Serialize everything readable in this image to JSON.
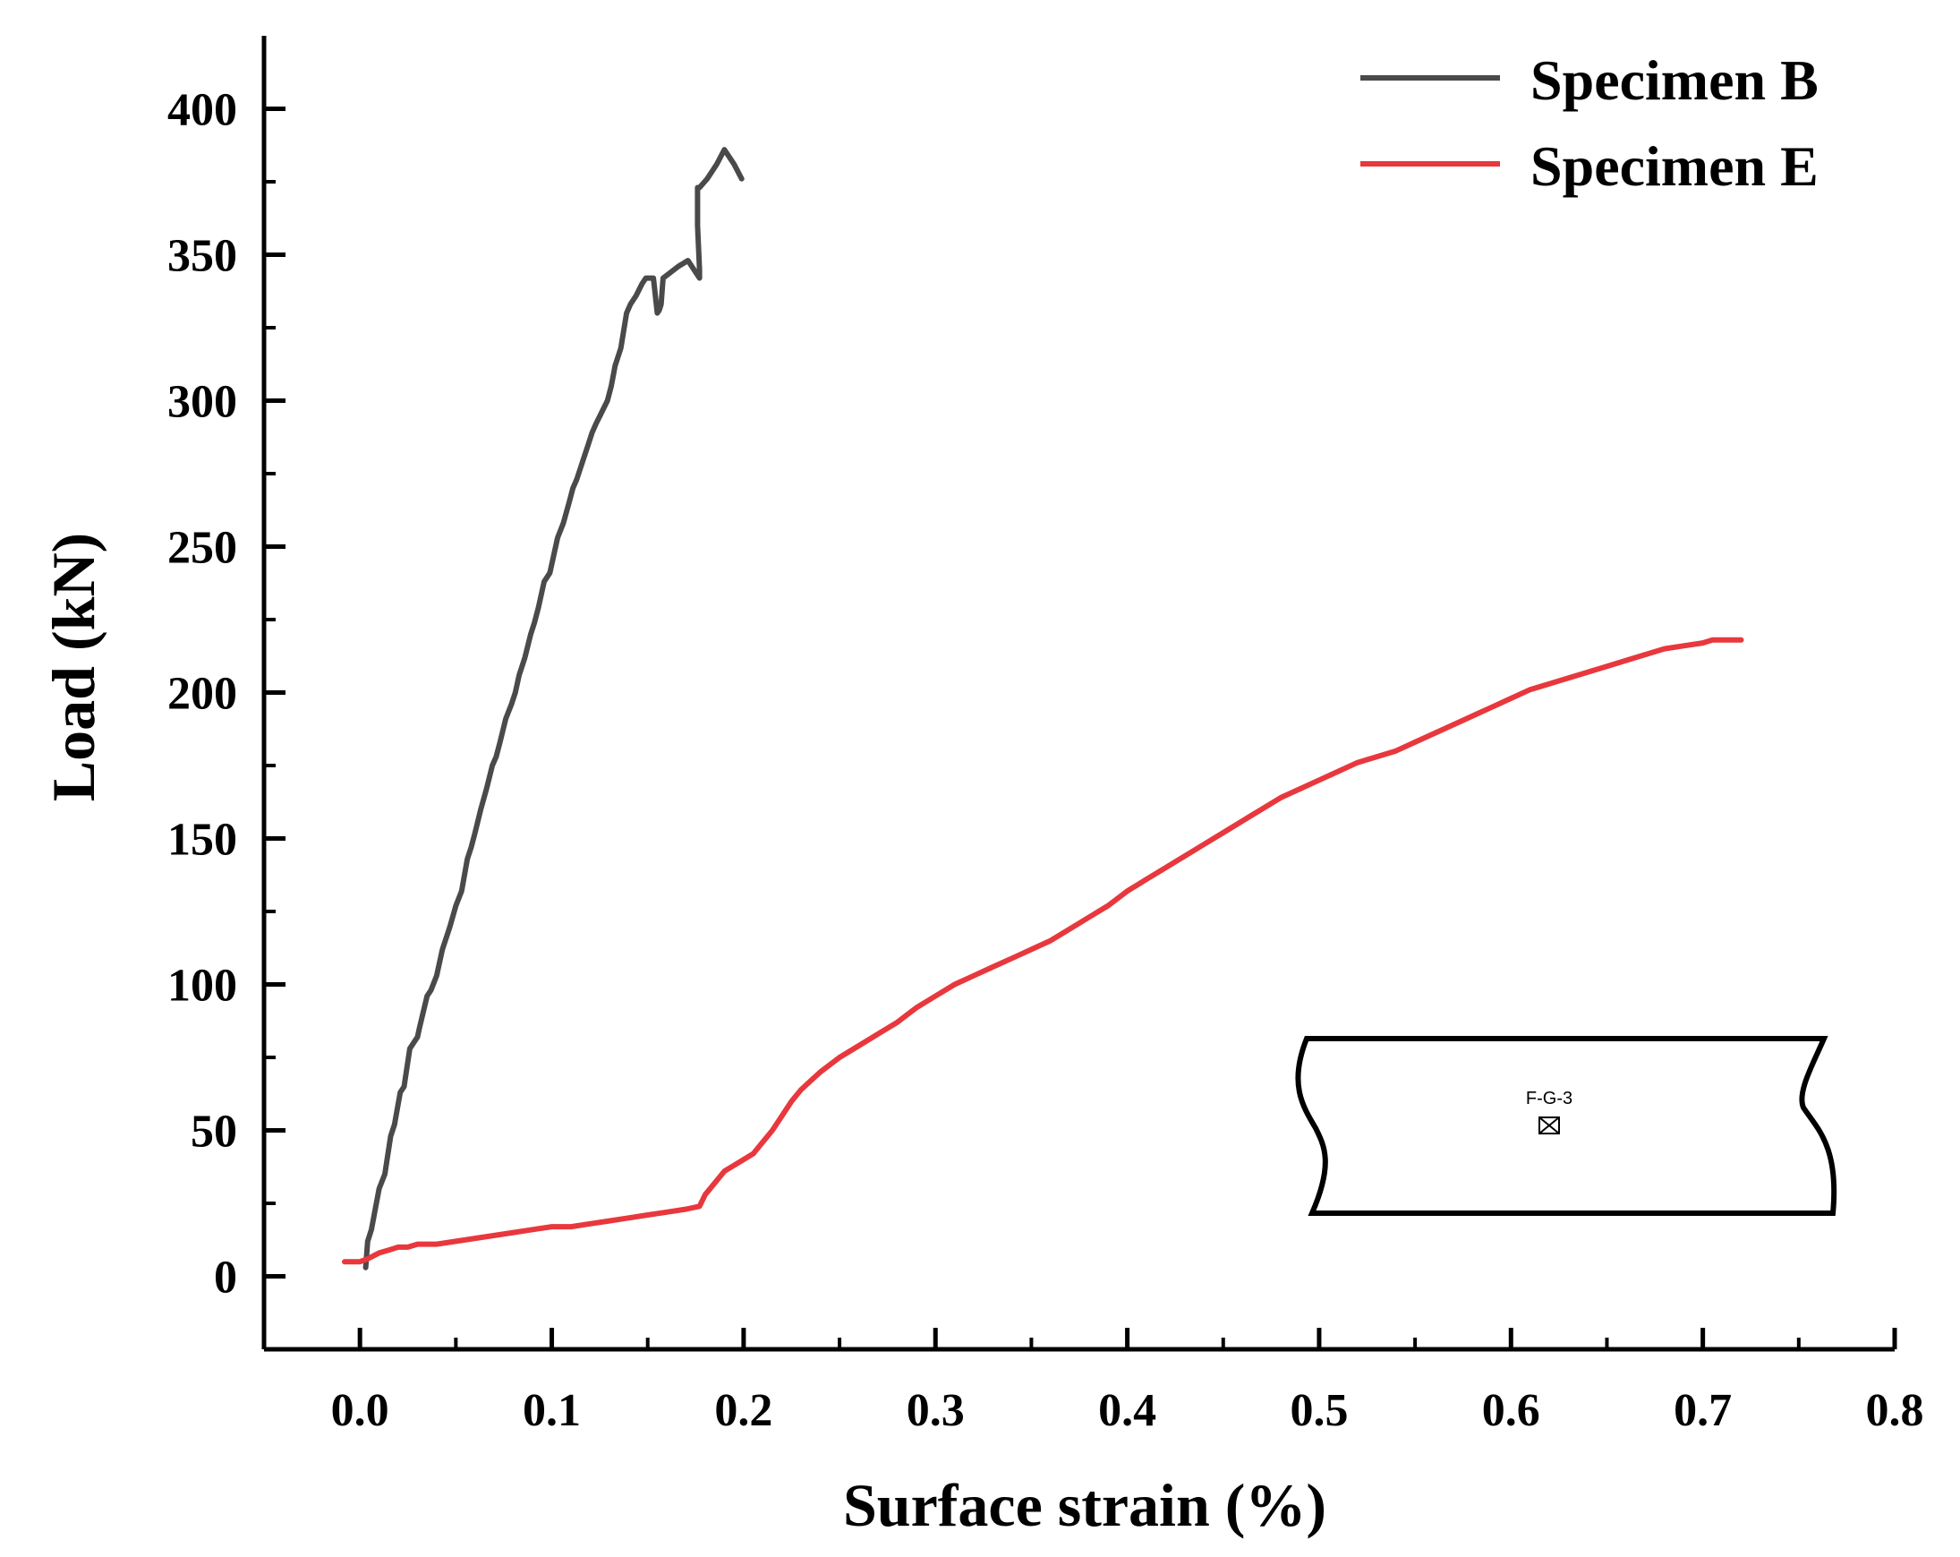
{
  "chart_data": {
    "type": "line",
    "xlabel": "Surface strain (%)",
    "ylabel": "Load (kN)",
    "xlim": [
      -0.05,
      0.8
    ],
    "ylim": [
      -25,
      425
    ],
    "xticks": [
      0.0,
      0.1,
      0.2,
      0.3,
      0.4,
      0.5,
      0.6,
      0.7,
      0.8
    ],
    "xtick_labels": [
      "0.0",
      "0.1",
      "0.2",
      "0.3",
      "0.4",
      "0.5",
      "0.6",
      "0.7",
      "0.8"
    ],
    "yticks": [
      0,
      50,
      100,
      150,
      200,
      250,
      300,
      350,
      400
    ],
    "ytick_labels": [
      "0",
      "50",
      "100",
      "150",
      "200",
      "250",
      "300",
      "350",
      "400"
    ],
    "legend_position": "top-right",
    "series": [
      {
        "name": "Specimen B",
        "color": "#4a4a4a",
        "x": [
          0.003,
          0.004,
          0.006,
          0.01,
          0.013,
          0.016,
          0.018,
          0.021,
          0.023,
          0.026,
          0.028,
          0.03,
          0.031,
          0.035,
          0.037,
          0.04,
          0.043,
          0.046,
          0.047,
          0.05,
          0.053,
          0.056,
          0.058,
          0.06,
          0.063,
          0.066,
          0.069,
          0.071,
          0.073,
          0.076,
          0.079,
          0.081,
          0.083,
          0.086,
          0.089,
          0.091,
          0.093,
          0.096,
          0.099,
          0.101,
          0.103,
          0.106,
          0.109,
          0.111,
          0.113,
          0.116,
          0.119,
          0.121,
          0.123,
          0.126,
          0.129,
          0.131,
          0.133,
          0.136,
          0.139,
          0.141,
          0.144,
          0.147,
          0.149,
          0.153,
          0.155,
          0.156,
          0.157,
          0.158,
          0.158,
          0.162,
          0.166,
          0.171,
          0.177,
          0.177,
          0.176,
          0.176,
          0.176,
          0.177,
          0.181,
          0.186,
          0.19,
          0.195,
          0.199
        ],
        "y": [
          3,
          12,
          16,
          30,
          35,
          48,
          52,
          63,
          65,
          78,
          80,
          82,
          85,
          96,
          98,
          103,
          112,
          118,
          120,
          127,
          132,
          143,
          147,
          152,
          160,
          167,
          175,
          178,
          183,
          191,
          196,
          200,
          206,
          212,
          220,
          224,
          229,
          238,
          241,
          247,
          253,
          258,
          265,
          270,
          273,
          279,
          285,
          289,
          292,
          296,
          300,
          305,
          312,
          318,
          330,
          333,
          336,
          340,
          342,
          342,
          330,
          331,
          333,
          342,
          342,
          344,
          346,
          348,
          342,
          345,
          360,
          370,
          373,
          373,
          376,
          381,
          386,
          381,
          376
        ]
      },
      {
        "name": "Specimen E",
        "color": "#e8383d",
        "x": [
          -0.008,
          -0.003,
          0.0,
          0.004,
          0.007,
          0.01,
          0.015,
          0.02,
          0.025,
          0.03,
          0.04,
          0.05,
          0.06,
          0.07,
          0.08,
          0.09,
          0.1,
          0.11,
          0.12,
          0.13,
          0.14,
          0.15,
          0.16,
          0.17,
          0.177,
          0.18,
          0.185,
          0.19,
          0.195,
          0.2,
          0.205,
          0.21,
          0.215,
          0.22,
          0.225,
          0.23,
          0.235,
          0.24,
          0.25,
          0.26,
          0.27,
          0.28,
          0.29,
          0.3,
          0.31,
          0.32,
          0.33,
          0.34,
          0.35,
          0.36,
          0.37,
          0.38,
          0.39,
          0.4,
          0.41,
          0.42,
          0.43,
          0.44,
          0.45,
          0.46,
          0.47,
          0.48,
          0.49,
          0.5,
          0.51,
          0.52,
          0.53,
          0.54,
          0.55,
          0.56,
          0.57,
          0.58,
          0.59,
          0.6,
          0.61,
          0.62,
          0.63,
          0.64,
          0.65,
          0.66,
          0.67,
          0.68,
          0.69,
          0.7,
          0.705,
          0.71,
          0.715,
          0.72
        ],
        "y": [
          5,
          5,
          5,
          6,
          7,
          8,
          9,
          10,
          10,
          11,
          11,
          12,
          13,
          14,
          15,
          16,
          17,
          17,
          18,
          19,
          20,
          21,
          22,
          23,
          24,
          28,
          32,
          36,
          38,
          40,
          42,
          46,
          50,
          55,
          60,
          64,
          67,
          70,
          75,
          79,
          83,
          87,
          92,
          96,
          100,
          103,
          106,
          109,
          112,
          115,
          119,
          123,
          127,
          132,
          136,
          140,
          144,
          148,
          152,
          156,
          160,
          164,
          167,
          170,
          173,
          176,
          178,
          180,
          183,
          186,
          189,
          192,
          195,
          198,
          201,
          203,
          205,
          207,
          209,
          211,
          213,
          215,
          216,
          217,
          218,
          218,
          218,
          218
        ]
      }
    ],
    "inset": {
      "label": "F-G-3",
      "marker": "⊠"
    }
  }
}
